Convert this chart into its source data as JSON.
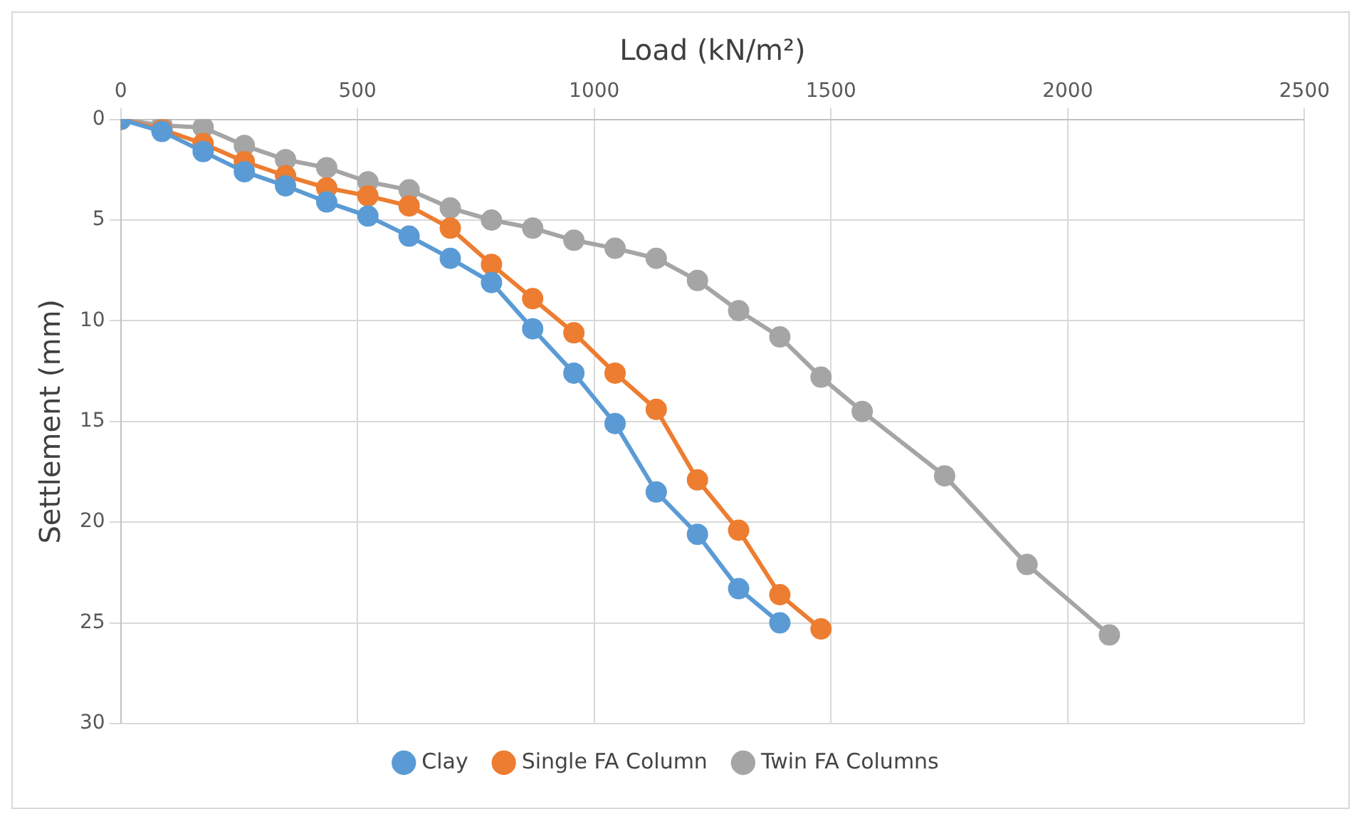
{
  "chart_data": {
    "type": "line",
    "xlabel": "Load (kN/m²)",
    "ylabel": "Settlement (mm)",
    "xlim": [
      0,
      2500
    ],
    "xticks": [
      0,
      500,
      1000,
      1500,
      2000,
      2500
    ],
    "ylim": [
      30,
      0
    ],
    "yticks": [
      0,
      5,
      10,
      15,
      20,
      25,
      30
    ],
    "grid": true,
    "legend": "bottom",
    "marker": "circle",
    "line_style": "solid",
    "series": [
      {
        "name": "Clay",
        "color": "#5b9bd5",
        "x": [
          0,
          87,
          174,
          261,
          348,
          435,
          522,
          609,
          696,
          783,
          870,
          957,
          1044,
          1131,
          1218,
          1305,
          1392
        ],
        "values": [
          0,
          0.6,
          1.6,
          2.6,
          3.3,
          4.1,
          4.8,
          5.8,
          6.9,
          8.1,
          10.4,
          12.6,
          15.1,
          18.5,
          20.6,
          23.3,
          25.0
        ]
      },
      {
        "name": "Single FA Column",
        "color": "#ed7d31",
        "x": [
          0,
          87,
          174,
          261,
          348,
          435,
          522,
          609,
          696,
          783,
          870,
          957,
          1044,
          1131,
          1218,
          1305,
          1392,
          1479
        ],
        "values": [
          0,
          0.5,
          1.2,
          2.1,
          2.8,
          3.4,
          3.8,
          4.3,
          5.4,
          7.2,
          8.9,
          10.6,
          12.6,
          14.4,
          17.9,
          20.4,
          23.6,
          25.3
        ]
      },
      {
        "name": "Twin FA Columns",
        "color": "#a5a5a5",
        "x": [
          0,
          87,
          174,
          261,
          348,
          435,
          522,
          609,
          696,
          783,
          870,
          957,
          1044,
          1131,
          1218,
          1305,
          1392,
          1479,
          1566,
          1740,
          1914,
          2088
        ],
        "values": [
          0,
          0.3,
          0.4,
          1.3,
          2.0,
          2.4,
          3.1,
          3.5,
          4.4,
          5.0,
          5.4,
          6.0,
          6.4,
          6.9,
          8.0,
          9.5,
          10.8,
          12.8,
          14.5,
          17.7,
          22.1,
          25.6
        ]
      }
    ]
  }
}
